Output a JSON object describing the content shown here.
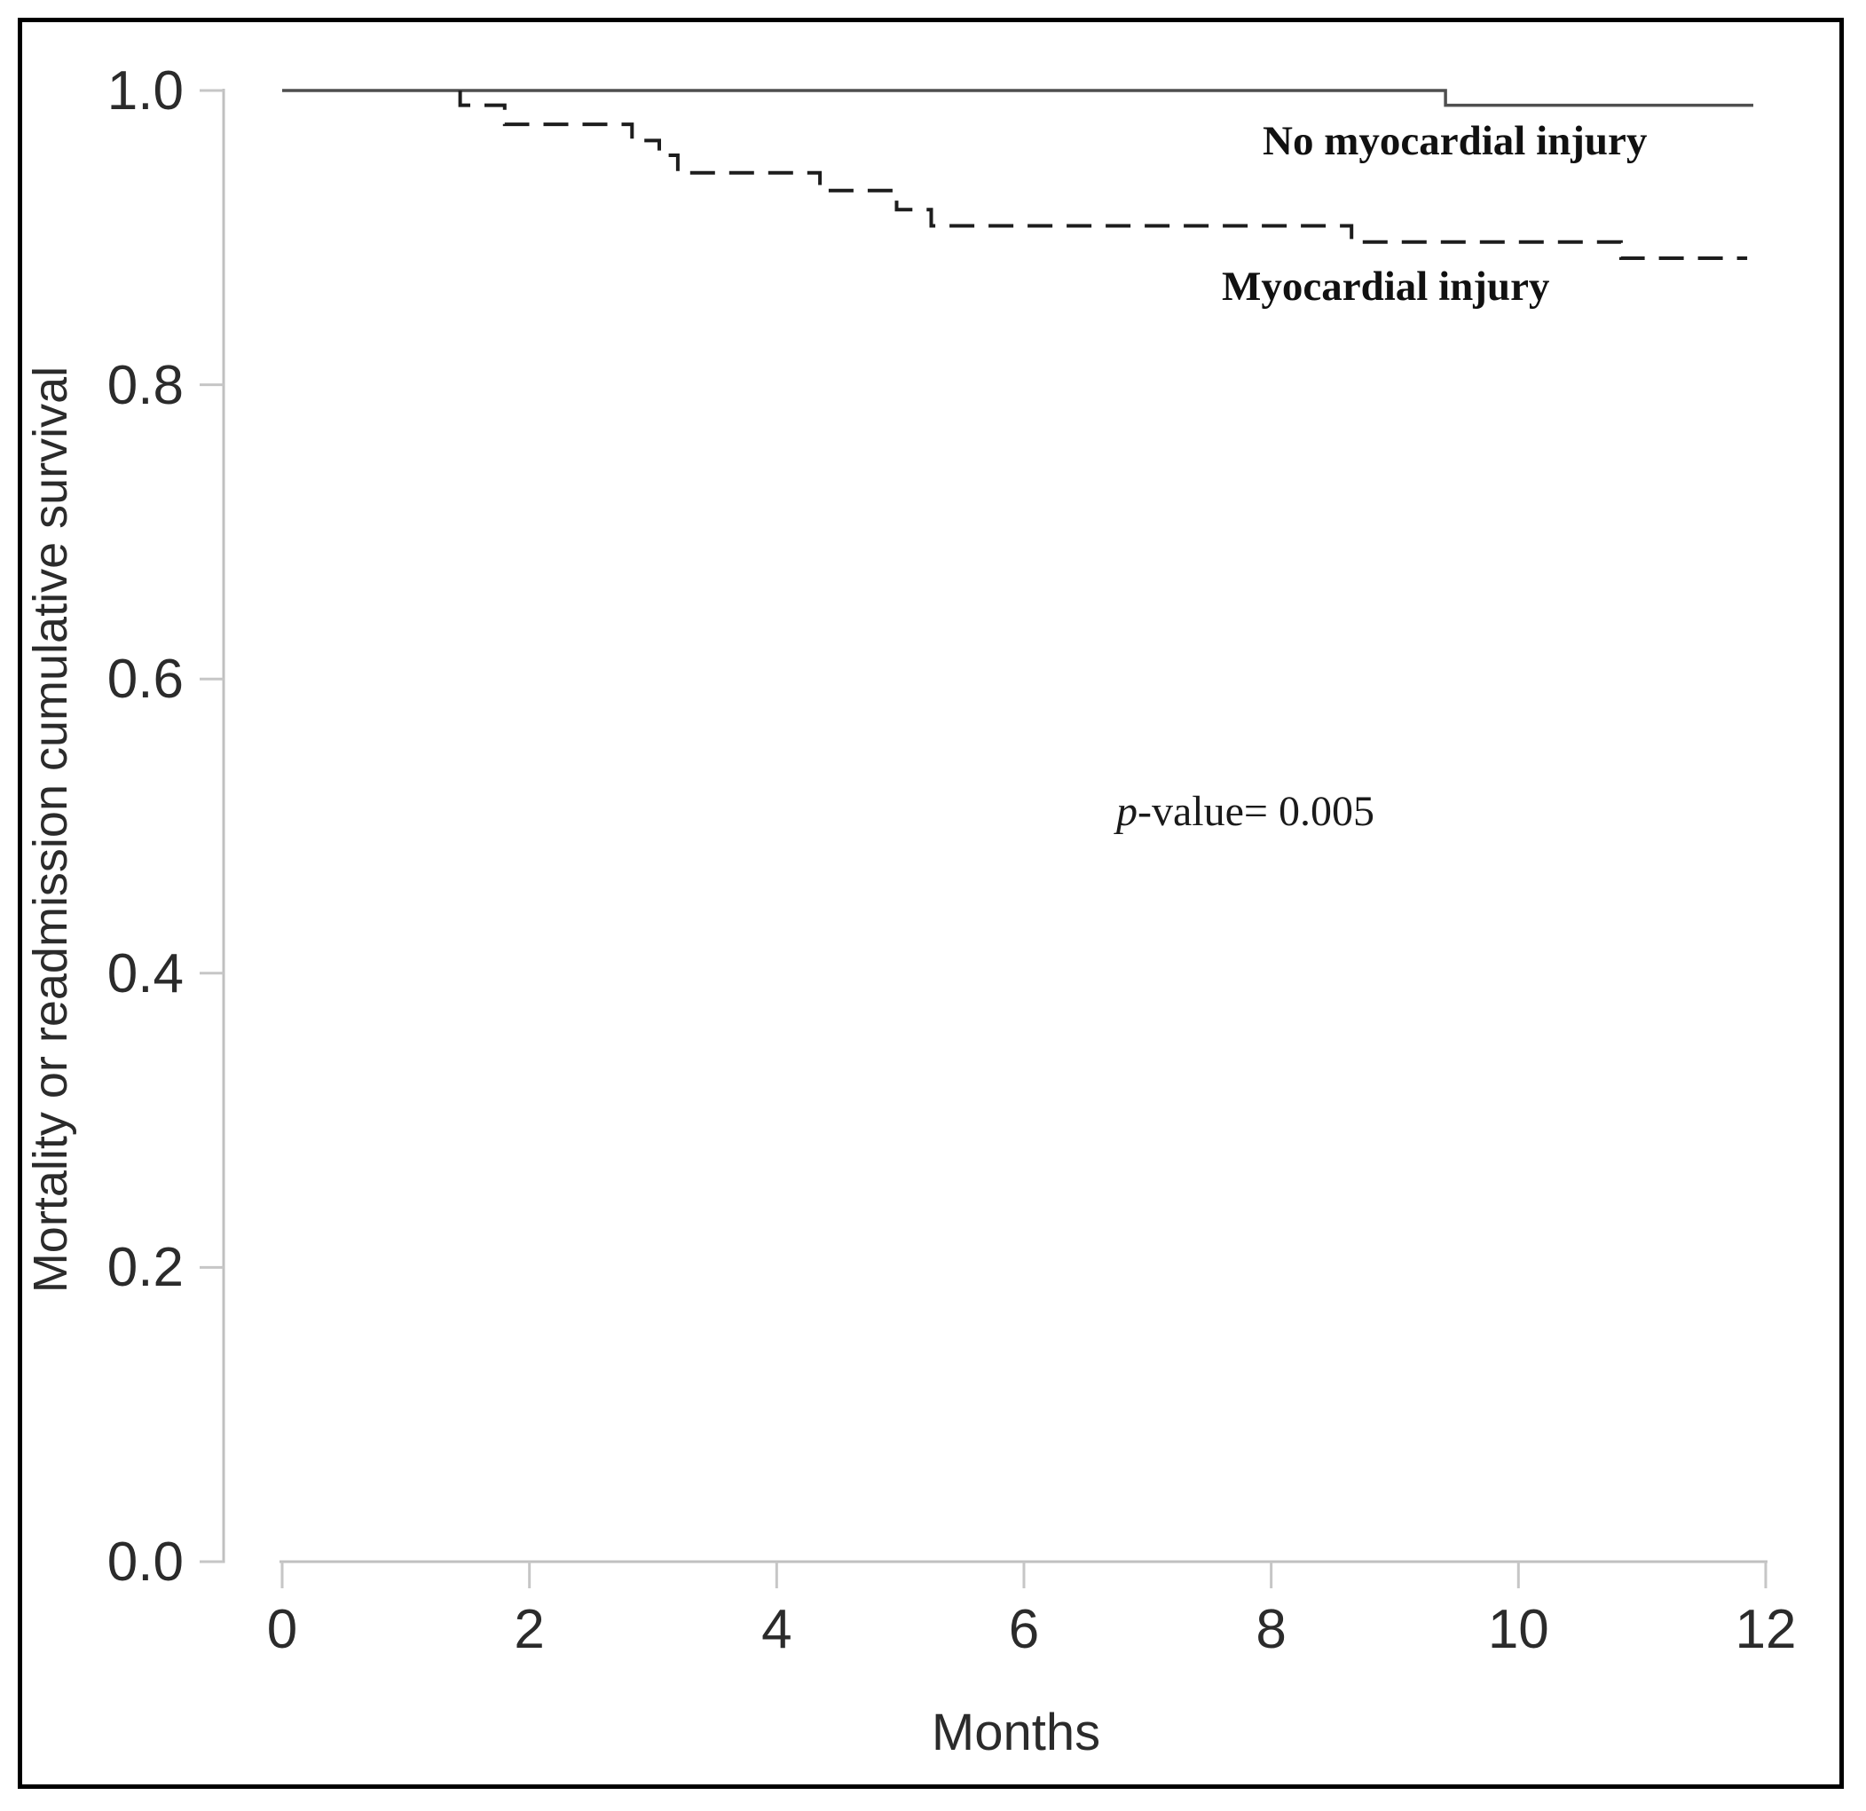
{
  "figure": {
    "xlabel": "Months",
    "ylabel": "Mortality or readmission cumulative survival",
    "annotation": {
      "p_italic": "p",
      "p_rest": "-value= 0.005"
    },
    "colors": {
      "axis_line": "#c0c0c0",
      "tick_mark": "#c6c6c6",
      "tick_label": "#2b2b2b",
      "solid_curve": "#4f4f4f",
      "dashed_curve": "#1d1d1d",
      "border": "#000000"
    }
  },
  "chart_data": {
    "type": "line",
    "subtype": "kaplan-meier-step-curves",
    "title": "",
    "xlabel": "Months",
    "ylabel": "Mortality or readmission cumulative survival",
    "xlim": [
      0,
      12
    ],
    "ylim": [
      0.0,
      1.0
    ],
    "grid": false,
    "x_tick_values": [
      0,
      2,
      4,
      6,
      8,
      10,
      12
    ],
    "x_tick_labels": [
      "0",
      "2",
      "4",
      "6",
      "8",
      "10",
      "12"
    ],
    "y_tick_values": [
      1.0,
      0.8,
      0.6,
      0.4,
      0.2,
      0.0
    ],
    "y_tick_labels": [
      "1.0",
      "0.8",
      "0.6",
      "0.4",
      "0.2",
      "0.0"
    ],
    "legend_position": "inline-text-annotations",
    "annotations": [
      {
        "text": "p-value= 0.005",
        "x_months": 7.8,
        "y_survival": 0.51
      }
    ],
    "series": [
      {
        "name": "No myocardial injury",
        "line_style": "solid",
        "color": "#4f4f4f",
        "width": 3.5,
        "steps_x_months_y_survival": [
          [
            0,
            1.0
          ],
          [
            9.41,
            1.0
          ],
          [
            9.41,
            0.99
          ],
          [
            11.9,
            0.99
          ]
        ]
      },
      {
        "name": "Myocardial injury",
        "line_style": "dashed",
        "color": "#1d1d1d",
        "width": 4,
        "dash_pattern": [
          28,
          16
        ],
        "steps_x_months_y_survival": [
          [
            1.44,
            1.0
          ],
          [
            1.44,
            0.99
          ],
          [
            1.8,
            0.99
          ],
          [
            1.8,
            0.977
          ],
          [
            2.83,
            0.977
          ],
          [
            2.83,
            0.966
          ],
          [
            3.05,
            0.966
          ],
          [
            3.05,
            0.956
          ],
          [
            3.2,
            0.956
          ],
          [
            3.2,
            0.944
          ],
          [
            4.35,
            0.944
          ],
          [
            4.35,
            0.932
          ],
          [
            4.97,
            0.932
          ],
          [
            4.97,
            0.919
          ],
          [
            5.25,
            0.919
          ],
          [
            5.25,
            0.908
          ],
          [
            8.65,
            0.908
          ],
          [
            8.65,
            0.897
          ],
          [
            10.83,
            0.897
          ],
          [
            10.83,
            0.886
          ],
          [
            11.85,
            0.886
          ]
        ]
      }
    ]
  }
}
